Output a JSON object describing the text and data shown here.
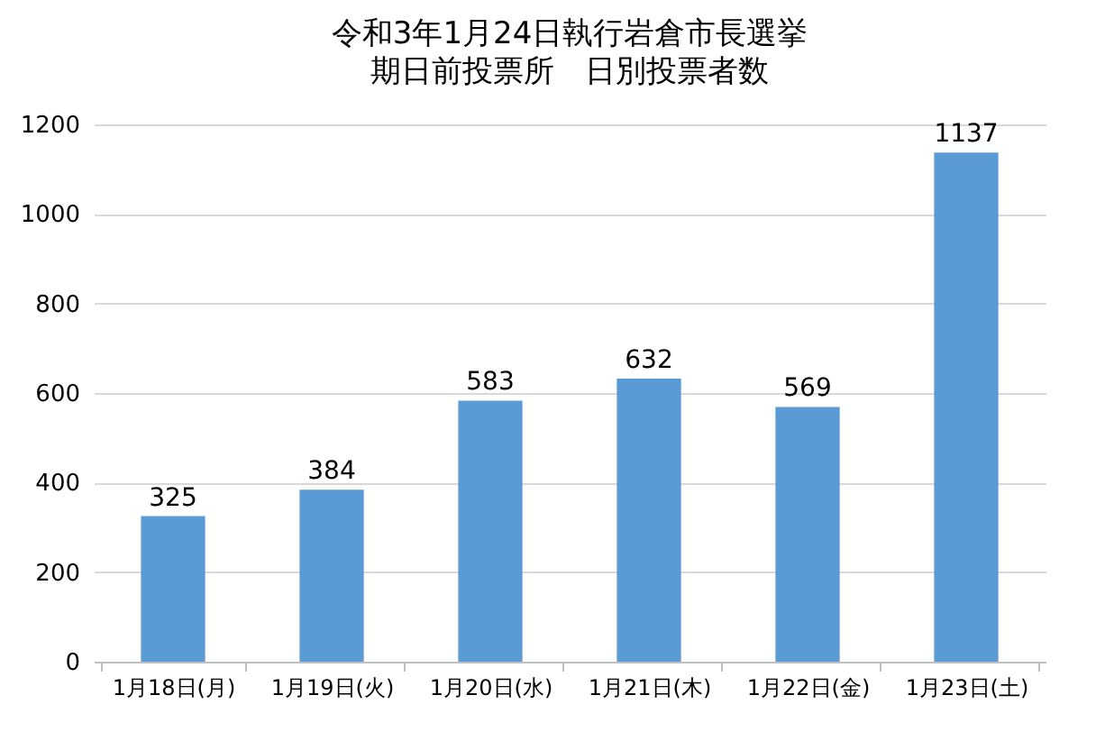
{
  "chart_data": {
    "type": "bar",
    "title": "令和3年1月24日執行岩倉市長選挙",
    "subtitle": "期日前投票所　日別投票者数",
    "categories": [
      "1月18日(月)",
      "1月19日(火)",
      "1月20日(水)",
      "1月21日(木)",
      "1月22日(金)",
      "1月23日(土)"
    ],
    "values": [
      325,
      384,
      583,
      632,
      569,
      1137
    ],
    "color": "#5b9bd5",
    "ylim": [
      0,
      1200
    ],
    "yticks": [
      0,
      200,
      400,
      600,
      800,
      1000,
      1200
    ],
    "grid": "y",
    "data_labels": true
  }
}
